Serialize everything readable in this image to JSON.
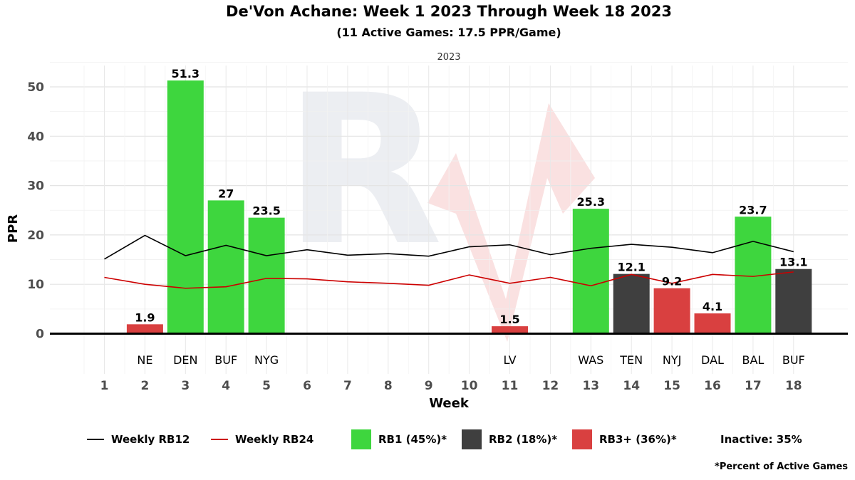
{
  "chart_data": {
    "type": "bar",
    "title": "De'Von Achane: Week 1 2023 Through Week 18 2023",
    "subtitle": "(11 Active Games: 17.5 PPR/Game)",
    "facet_label": "2023",
    "xlabel": "Week",
    "ylabel": "PPR",
    "ylim": [
      -3,
      55
    ],
    "y_ticks": [
      0,
      10,
      20,
      30,
      40,
      50
    ],
    "grid": true,
    "weeks": [
      "1",
      "2",
      "3",
      "4",
      "5",
      "6",
      "7",
      "8",
      "9",
      "10",
      "11",
      "12",
      "13",
      "14",
      "15",
      "16",
      "17",
      "18"
    ],
    "opponents": [
      "",
      "NE",
      "DEN",
      "BUF",
      "NYG",
      "",
      "",
      "",
      "",
      "",
      "LV",
      "",
      "WAS",
      "TEN",
      "NYJ",
      "DAL",
      "BAL",
      "BUF"
    ],
    "ppr": [
      null,
      1.9,
      51.3,
      27,
      23.5,
      null,
      null,
      null,
      null,
      null,
      1.5,
      null,
      25.3,
      12.1,
      9.2,
      4.1,
      23.7,
      13.1
    ],
    "ppr_labels": [
      "",
      "1.9",
      "51.3",
      "27",
      "23.5",
      "",
      "",
      "",
      "",
      "",
      "1.5",
      "",
      "25.3",
      "12.1",
      "9.2",
      "4.1",
      "23.7",
      "13.1"
    ],
    "tier": [
      null,
      "RB3+",
      "RB1",
      "RB1",
      "RB1",
      null,
      null,
      null,
      null,
      null,
      "RB3+",
      null,
      "RB1",
      "RB2",
      "RB3+",
      "RB3+",
      "RB1",
      "RB2"
    ],
    "tier_colors": {
      "RB1": "#3ed63e",
      "RB2": "#3f3f3f",
      "RB3+": "#d94040"
    },
    "series": [
      {
        "name": "Weekly RB12",
        "color": "#000000",
        "values": [
          15.1,
          19.9,
          15.8,
          17.9,
          15.8,
          17.0,
          15.9,
          16.2,
          15.7,
          17.6,
          18.0,
          16.0,
          17.3,
          18.1,
          17.5,
          16.4,
          18.7,
          16.6
        ]
      },
      {
        "name": "Weekly RB24",
        "color": "#cc0000",
        "values": [
          11.4,
          10.0,
          9.2,
          9.5,
          11.2,
          11.1,
          10.5,
          10.2,
          9.8,
          11.9,
          10.2,
          11.4,
          9.7,
          12.0,
          10.2,
          12.0,
          11.6,
          12.5
        ]
      }
    ]
  },
  "legend": {
    "rb12": "Weekly RB12",
    "rb24": "Weekly RB24",
    "rb1": "RB1 (45%)*",
    "rb2": "RB2 (18%)*",
    "rb3": "RB3+ (36%)*",
    "inactive": "Inactive: 35%"
  },
  "footnote": "*Percent of Active Games"
}
